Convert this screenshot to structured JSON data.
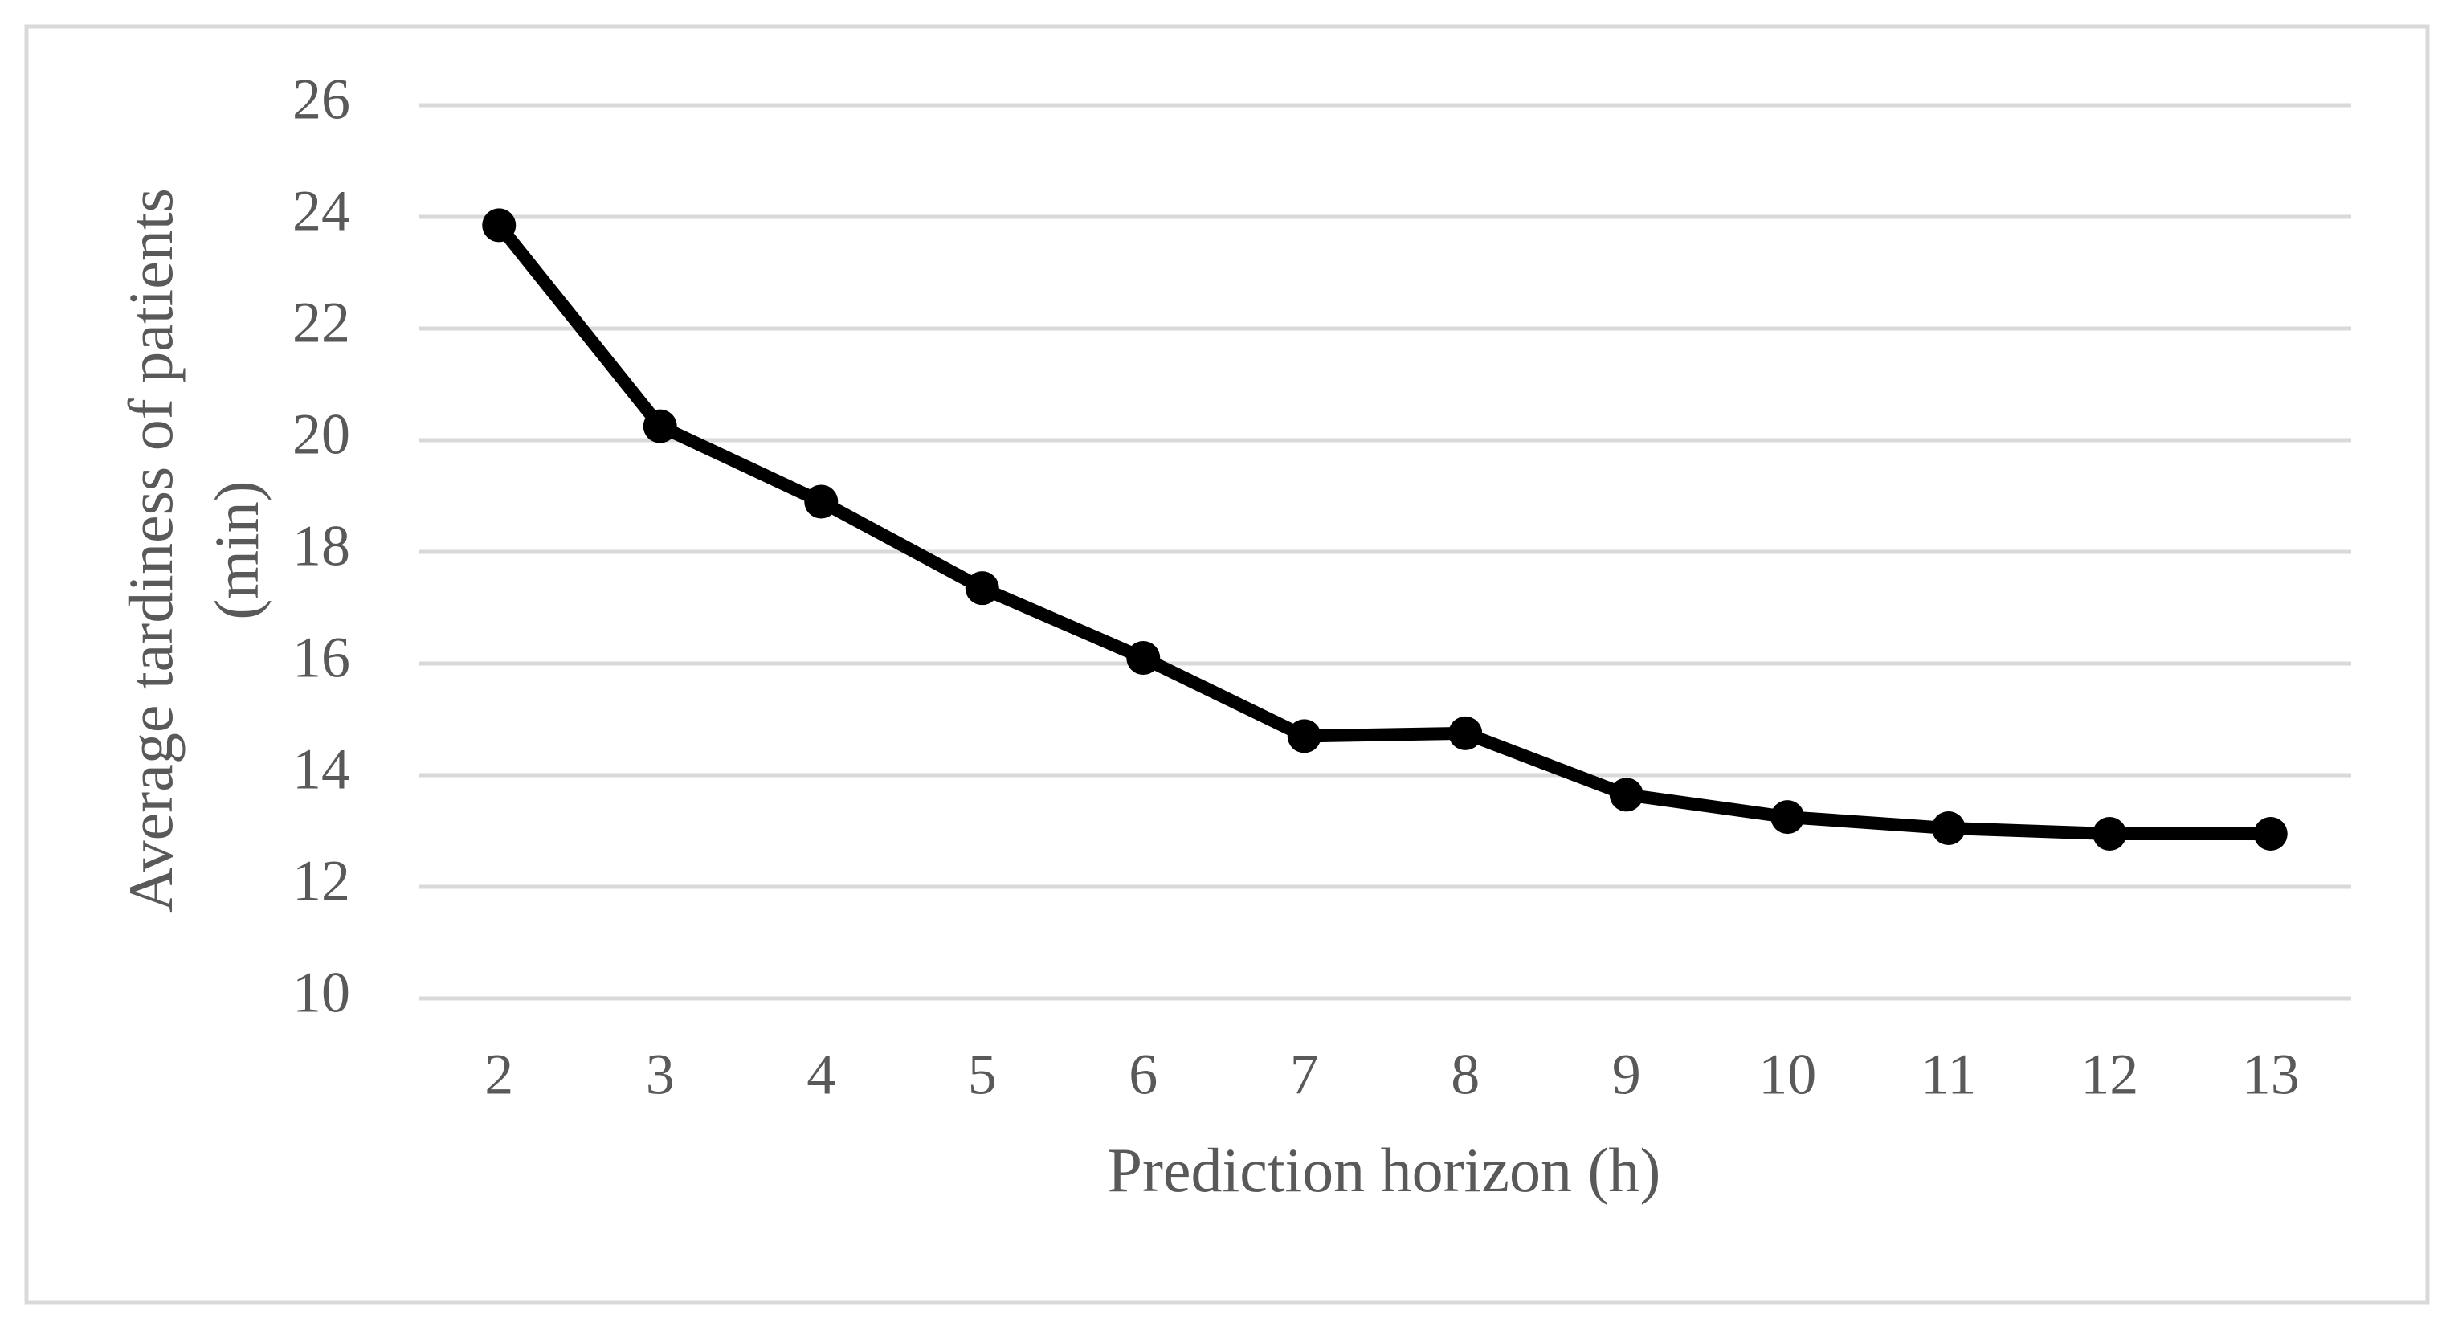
{
  "chart_data": {
    "type": "line",
    "x_label": "Prediction horizon (h)",
    "y_label": [
      "Average tardiness of patients",
      "(min)"
    ],
    "categories": [
      "2",
      "3",
      "4",
      "5",
      "6",
      "7",
      "8",
      "9",
      "10",
      "11",
      "12",
      "13"
    ],
    "series": [
      {
        "color": "#000000",
        "values": [
          23.85,
          20.25,
          18.9,
          17.35,
          16.1,
          14.7,
          14.75,
          13.65,
          13.25,
          13.05,
          12.95,
          12.95
        ]
      }
    ],
    "ylim": [
      10,
      26
    ],
    "yticks": [
      10,
      12,
      14,
      16,
      18,
      20,
      22,
      24,
      26
    ],
    "grid": true
  }
}
